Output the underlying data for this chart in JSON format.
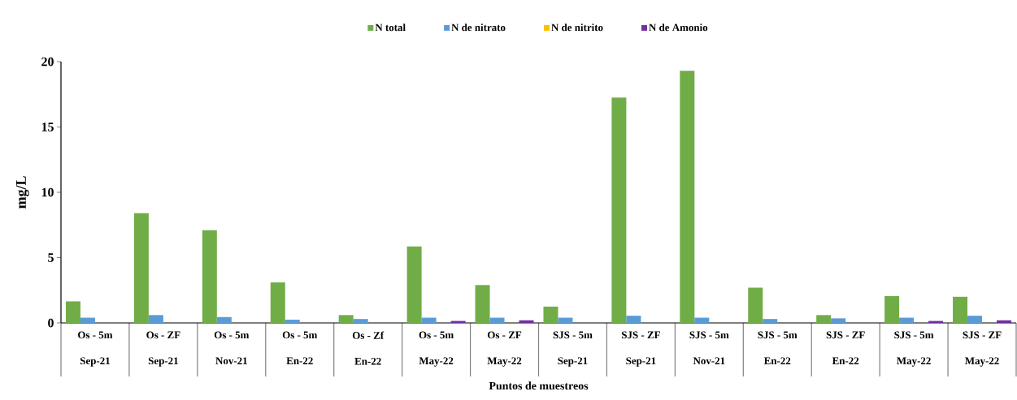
{
  "chart_data": {
    "type": "bar",
    "categories": [
      "Os - 5m\nSep-21",
      "Os - ZF\nSep-21",
      "Os - 5m\nNov-21",
      "Os - 5m\nEn-22",
      "Os - Zf\nEn-22",
      "Os - 5m\nMay-22",
      "Os - ZF\nMay-22",
      "SJS - 5m\nSep-21",
      "SJS - ZF\nSep-21",
      "SJS - 5m\nNov-21",
      "SJS - 5m\nEn-22",
      "SJS - ZF\nEn-22",
      "SJS - 5m\nMay-22",
      "SJS - ZF\nMay-22"
    ],
    "series": [
      {
        "name": "N total",
        "color": "#70ad47",
        "values": [
          1.65,
          8.4,
          7.1,
          3.1,
          0.6,
          5.85,
          2.9,
          1.25,
          17.25,
          19.3,
          2.7,
          0.6,
          2.05,
          2.0
        ]
      },
      {
        "name": "N de nitrato",
        "color": "#5b9bd5",
        "values": [
          0.4,
          0.6,
          0.45,
          0.25,
          0.3,
          0.4,
          0.4,
          0.4,
          0.55,
          0.4,
          0.3,
          0.35,
          0.4,
          0.55
        ]
      },
      {
        "name": "N de nitrito",
        "color": "#ffc000",
        "values": [
          0,
          0,
          0,
          0,
          0,
          0,
          0,
          0,
          0,
          0,
          0,
          0,
          0,
          0
        ]
      },
      {
        "name": "N de Amonio",
        "color": "#7030a0",
        "values": [
          0,
          0,
          0,
          0,
          0,
          0.15,
          0.2,
          0,
          0,
          0,
          0,
          0,
          0.15,
          0.2
        ]
      }
    ],
    "xlabel": "Puntos de muestreos",
    "ylabel": "mg/L",
    "ylim": [
      0,
      20
    ],
    "yticks": [
      0,
      5,
      10,
      15,
      20
    ],
    "legend": "top",
    "grid": false
  }
}
